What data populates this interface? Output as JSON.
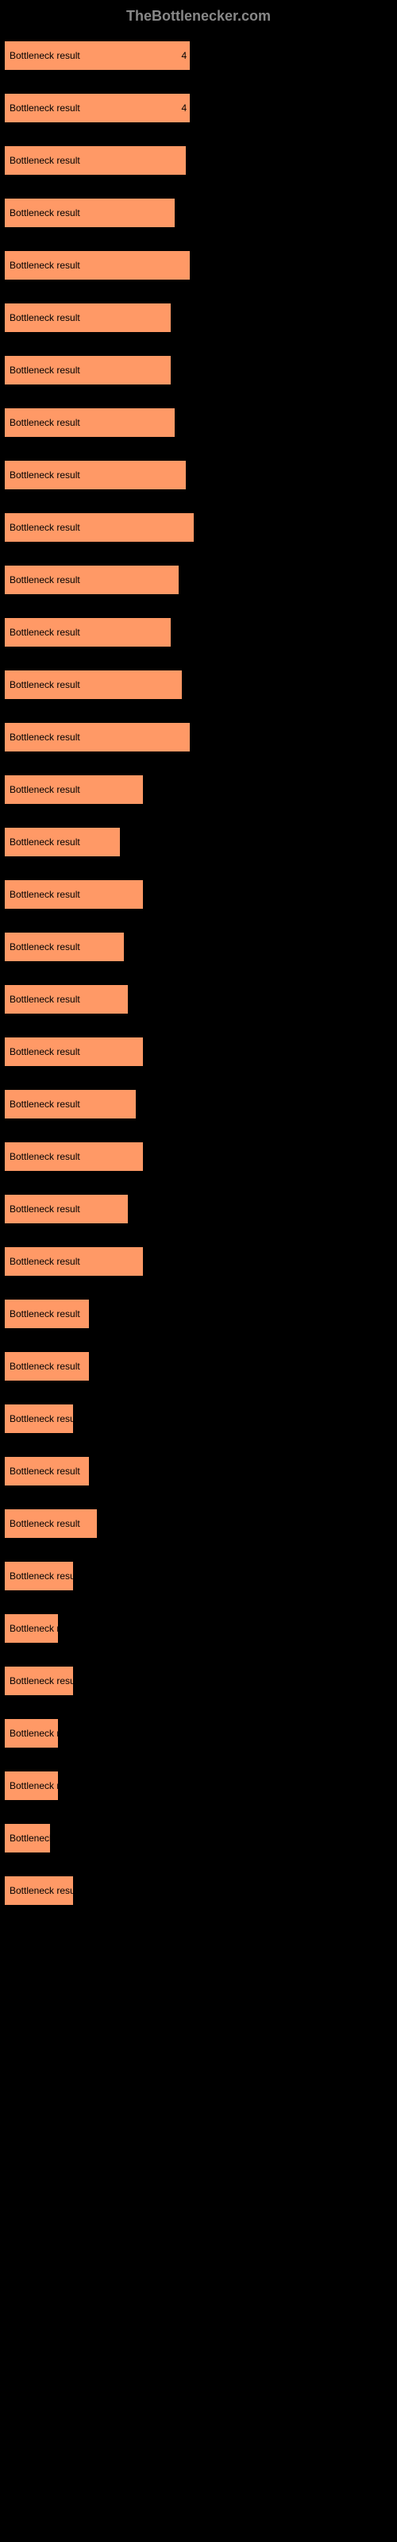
{
  "header": {
    "title": "TheBottlenecker.com"
  },
  "chart": {
    "type": "bar",
    "bar_color": "#ff9966",
    "background_color": "#000000",
    "text_color": "#000000",
    "bar_label": "Bottleneck result",
    "bars": [
      {
        "width_pct": 48,
        "value": "4"
      },
      {
        "width_pct": 48,
        "value": "4"
      },
      {
        "width_pct": 47,
        "value": ""
      },
      {
        "width_pct": 44,
        "value": ""
      },
      {
        "width_pct": 48,
        "value": ""
      },
      {
        "width_pct": 43,
        "value": ""
      },
      {
        "width_pct": 43,
        "value": ""
      },
      {
        "width_pct": 44,
        "value": ""
      },
      {
        "width_pct": 47,
        "value": ""
      },
      {
        "width_pct": 49,
        "value": ""
      },
      {
        "width_pct": 45,
        "value": ""
      },
      {
        "width_pct": 43,
        "value": ""
      },
      {
        "width_pct": 46,
        "value": ""
      },
      {
        "width_pct": 48,
        "value": ""
      },
      {
        "width_pct": 36,
        "value": ""
      },
      {
        "width_pct": 30,
        "value": ""
      },
      {
        "width_pct": 36,
        "value": ""
      },
      {
        "width_pct": 31,
        "value": ""
      },
      {
        "width_pct": 32,
        "value": ""
      },
      {
        "width_pct": 36,
        "value": ""
      },
      {
        "width_pct": 34,
        "value": ""
      },
      {
        "width_pct": 36,
        "value": ""
      },
      {
        "width_pct": 32,
        "value": ""
      },
      {
        "width_pct": 36,
        "value": ""
      },
      {
        "width_pct": 22,
        "value": ""
      },
      {
        "width_pct": 22,
        "value": ""
      },
      {
        "width_pct": 18,
        "value": ""
      },
      {
        "width_pct": 22,
        "value": ""
      },
      {
        "width_pct": 24,
        "value": ""
      },
      {
        "width_pct": 18,
        "value": ""
      },
      {
        "width_pct": 14,
        "value": ""
      },
      {
        "width_pct": 18,
        "value": ""
      },
      {
        "width_pct": 14,
        "value": ""
      },
      {
        "width_pct": 14,
        "value": ""
      },
      {
        "width_pct": 12,
        "value": ""
      },
      {
        "width_pct": 18,
        "value": ""
      }
    ]
  }
}
